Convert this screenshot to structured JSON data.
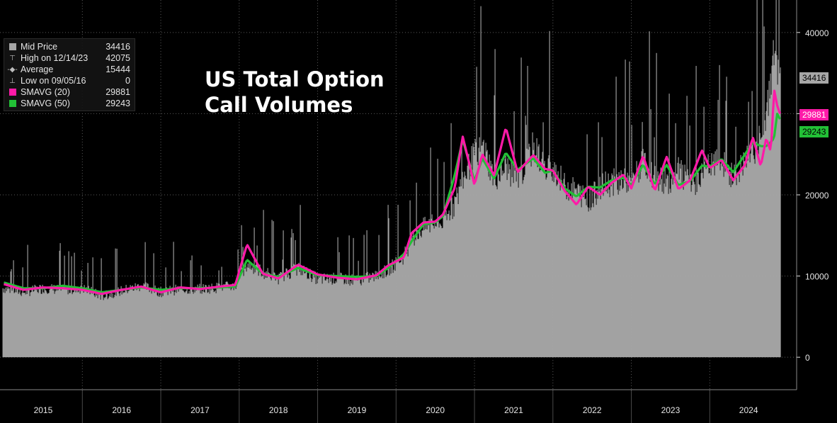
{
  "chart_data": {
    "type": "bar",
    "title": "US Total Option Call Volumes",
    "xlabel": "",
    "ylabel": "",
    "ylim": [
      -4000,
      44000
    ],
    "y_ticks": [
      0,
      10000,
      20000,
      30000,
      40000
    ],
    "y_tick_labels": [
      "0",
      "10000",
      "20000",
      "30000",
      "40000"
    ],
    "x_tick_labels": [
      "2015",
      "2016",
      "2017",
      "2018",
      "2019",
      "2020",
      "2021",
      "2022",
      "2023",
      "2024"
    ],
    "x_range": [
      2014.95,
      2024.9
    ],
    "grid": true,
    "legend_position": "top-left",
    "series": [
      {
        "name": "Mid Price",
        "kind": "bar",
        "color": "#a6a6a6",
        "x": [
          2015.0,
          2015.25,
          2015.5,
          2015.75,
          2016.0,
          2016.25,
          2016.5,
          2016.75,
          2017.0,
          2017.25,
          2017.5,
          2017.75,
          2017.95,
          2018.1,
          2018.3,
          2018.5,
          2018.75,
          2019.0,
          2019.25,
          2019.5,
          2019.75,
          2019.9,
          2020.1,
          2020.2,
          2020.35,
          2020.5,
          2020.6,
          2020.75,
          2020.85,
          2021.0,
          2021.1,
          2021.25,
          2021.4,
          2021.55,
          2021.75,
          2021.9,
          2022.0,
          2022.15,
          2022.3,
          2022.45,
          2022.6,
          2022.75,
          2022.9,
          2023.0,
          2023.15,
          2023.3,
          2023.45,
          2023.6,
          2023.75,
          2023.9,
          2024.0,
          2024.15,
          2024.3,
          2024.45,
          2024.55,
          2024.65,
          2024.72,
          2024.78,
          2024.82,
          2024.86,
          2024.9
        ],
        "values": [
          8500,
          8000,
          8500,
          8300,
          8500,
          7500,
          8200,
          8800,
          8000,
          8400,
          8400,
          8600,
          8800,
          11500,
          10500,
          9700,
          11000,
          9600,
          9700,
          9500,
          10000,
          10800,
          12500,
          14500,
          16000,
          16500,
          16500,
          19000,
          22000,
          25000,
          26000,
          22000,
          23500,
          21500,
          26000,
          23000,
          23500,
          21000,
          20500,
          19200,
          21000,
          21500,
          22000,
          21500,
          24000,
          22000,
          21500,
          23000,
          21000,
          22500,
          23500,
          24000,
          22000,
          24000,
          25500,
          27000,
          30000,
          35000,
          38000,
          36000,
          34416
        ]
      },
      {
        "name": "SMAVG (20)",
        "kind": "line",
        "color": "#ff1aa8",
        "x": [
          2015.0,
          2015.25,
          2015.5,
          2015.75,
          2016.0,
          2016.25,
          2016.5,
          2016.75,
          2017.0,
          2017.25,
          2017.5,
          2017.75,
          2017.95,
          2018.1,
          2018.3,
          2018.5,
          2018.75,
          2019.0,
          2019.25,
          2019.5,
          2019.75,
          2019.9,
          2020.1,
          2020.2,
          2020.35,
          2020.5,
          2020.6,
          2020.75,
          2020.85,
          2021.0,
          2021.1,
          2021.25,
          2021.4,
          2021.55,
          2021.75,
          2021.9,
          2022.0,
          2022.15,
          2022.3,
          2022.45,
          2022.6,
          2022.75,
          2022.9,
          2023.0,
          2023.15,
          2023.3,
          2023.45,
          2023.6,
          2023.75,
          2023.9,
          2024.0,
          2024.15,
          2024.3,
          2024.45,
          2024.55,
          2024.65,
          2024.72,
          2024.78,
          2024.82,
          2024.86,
          2024.9
        ],
        "values": [
          9000,
          8300,
          8600,
          8500,
          8300,
          7800,
          8300,
          8700,
          8000,
          8600,
          8400,
          8700,
          8900,
          13900,
          10300,
          9700,
          11400,
          10200,
          9800,
          9600,
          10100,
          11300,
          12300,
          15300,
          16600,
          16700,
          17600,
          20900,
          27200,
          21200,
          25000,
          22400,
          28300,
          22800,
          24900,
          23200,
          23000,
          20500,
          18800,
          21000,
          20000,
          21500,
          22500,
          20800,
          24800,
          20500,
          24700,
          20700,
          21800,
          25500,
          23300,
          24300,
          21800,
          23700,
          27100,
          23500,
          27000,
          25300,
          33000,
          31000,
          29881
        ]
      },
      {
        "name": "SMAVG (50)",
        "kind": "line",
        "color": "#22c036",
        "x": [
          2015.0,
          2015.25,
          2015.5,
          2015.75,
          2016.0,
          2016.25,
          2016.5,
          2016.75,
          2017.0,
          2017.25,
          2017.5,
          2017.75,
          2017.95,
          2018.1,
          2018.3,
          2018.5,
          2018.75,
          2019.0,
          2019.25,
          2019.5,
          2019.75,
          2019.9,
          2020.1,
          2020.2,
          2020.35,
          2020.5,
          2020.6,
          2020.75,
          2020.85,
          2021.0,
          2021.1,
          2021.25,
          2021.4,
          2021.55,
          2021.75,
          2021.9,
          2022.0,
          2022.15,
          2022.3,
          2022.45,
          2022.6,
          2022.75,
          2022.9,
          2023.0,
          2023.15,
          2023.3,
          2023.45,
          2023.6,
          2023.75,
          2023.9,
          2024.0,
          2024.15,
          2024.3,
          2024.45,
          2024.55,
          2024.65,
          2024.72,
          2024.78,
          2024.82,
          2024.86,
          2024.9
        ],
        "values": [
          9200,
          8500,
          8500,
          8800,
          8500,
          8000,
          8300,
          8600,
          8300,
          8500,
          8500,
          8600,
          8700,
          12000,
          10300,
          9900,
          11000,
          10100,
          10000,
          9900,
          10000,
          11000,
          12700,
          14300,
          16400,
          16600,
          17400,
          22500,
          26800,
          21700,
          24500,
          22000,
          25200,
          23100,
          24500,
          22700,
          23000,
          20800,
          19800,
          21000,
          20900,
          21800,
          22100,
          21200,
          23700,
          21300,
          23700,
          21200,
          21700,
          23600,
          23500,
          24400,
          22800,
          25000,
          26500,
          26000,
          26000,
          26500,
          27000,
          30000,
          29243
        ]
      }
    ],
    "annotations": [
      {
        "label": "High on 12/14/23",
        "value": 42075
      },
      {
        "label": "Average",
        "value": 15444
      },
      {
        "label": "Low on 09/05/16",
        "value": 0
      }
    ]
  },
  "legend": {
    "items": [
      {
        "label": "Mid Price",
        "value": "34416",
        "icon": "square-icon",
        "color": "#a6a6a6"
      },
      {
        "label": "High on 12/14/23",
        "value": "42075",
        "icon": "high-marker-icon",
        "color": "#bdbdbd"
      },
      {
        "label": "Average",
        "value": "15444",
        "icon": "average-marker-icon",
        "color": "#bdbdbd"
      },
      {
        "label": "Low on 09/05/16",
        "value": "0",
        "icon": "low-marker-icon",
        "color": "#bdbdbd"
      },
      {
        "label": "SMAVG (20)",
        "value": "29881",
        "icon": "square-icon",
        "color": "#ff1aa8"
      },
      {
        "label": "SMAVG (50)",
        "value": "29243",
        "icon": "square-icon",
        "color": "#22c036"
      }
    ]
  },
  "title": {
    "line1": "US Total Option",
    "line2": "Call Volumes"
  },
  "badges": {
    "mid_price": "34416",
    "smavg20": "29881",
    "smavg50": "29243"
  },
  "colors": {
    "background": "#000000",
    "grid": "#5a5a5a",
    "axis_text": "#e6e6e6"
  }
}
